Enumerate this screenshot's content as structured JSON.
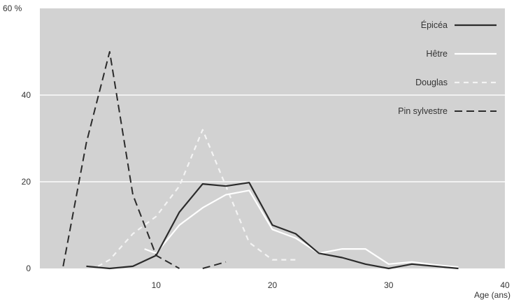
{
  "chart_data": {
    "type": "line",
    "title": "",
    "xlabel": "Age (ans)",
    "ylabel": "",
    "xlim": [
      0,
      40
    ],
    "ylim": [
      0,
      60
    ],
    "x_ticks": [
      {
        "value": 10,
        "label": "10"
      },
      {
        "value": 20,
        "label": "20"
      },
      {
        "value": 30,
        "label": "30"
      },
      {
        "value": 40,
        "label": "40"
      }
    ],
    "y_ticks": [
      {
        "value": 0,
        "label": "0"
      },
      {
        "value": 20,
        "label": "20"
      },
      {
        "value": 40,
        "label": "40"
      },
      {
        "value": 60,
        "label": "60 %"
      }
    ],
    "grid": "horizontal",
    "legend_position": "top-right",
    "colors": {
      "plot_background": "#d2d2d2",
      "grid": "#f2f2f2",
      "epicea": "#2b2b2b",
      "hetre": "#ffffff",
      "douglas": "#f4f4f4",
      "pin": "#2b2b2b"
    },
    "series": [
      {
        "name": "Épicéa",
        "style": "solid-dark",
        "points": [
          [
            4,
            0.5
          ],
          [
            6,
            0
          ],
          [
            8,
            0.5
          ],
          [
            10,
            3
          ],
          [
            12,
            13
          ],
          [
            14,
            19.5
          ],
          [
            16,
            19
          ],
          [
            18,
            19.8
          ],
          [
            20,
            10
          ],
          [
            22,
            8
          ],
          [
            24,
            3.5
          ],
          [
            26,
            2.5
          ],
          [
            28,
            1
          ],
          [
            30,
            0
          ],
          [
            32,
            1
          ],
          [
            34,
            0.5
          ],
          [
            36,
            0
          ]
        ]
      },
      {
        "name": "Hêtre",
        "style": "solid-white",
        "points": [
          [
            9,
            4.5
          ],
          [
            10,
            3.5
          ],
          [
            12,
            10
          ],
          [
            14,
            14
          ],
          [
            16,
            17
          ],
          [
            18,
            18
          ],
          [
            20,
            9
          ],
          [
            22,
            7
          ],
          [
            24,
            3.5
          ],
          [
            26,
            4.5
          ],
          [
            28,
            4.5
          ],
          [
            30,
            1
          ],
          [
            32,
            1.5
          ],
          [
            34,
            0.8
          ],
          [
            36,
            0.3
          ]
        ]
      },
      {
        "name": "Douglas",
        "style": "dashed-white",
        "points": [
          [
            5,
            0.5
          ],
          [
            6,
            2
          ],
          [
            8,
            8
          ],
          [
            10,
            12
          ],
          [
            12,
            19
          ],
          [
            14,
            32
          ],
          [
            16,
            19
          ],
          [
            18,
            6
          ],
          [
            20,
            2
          ],
          [
            22,
            2
          ]
        ]
      },
      {
        "name": "Pin sylvestre",
        "style": "dashed-dark",
        "segments": [
          [
            [
              2,
              0.5
            ],
            [
              4,
              29
            ],
            [
              6,
              50
            ],
            [
              8,
              17
            ],
            [
              10,
              3
            ],
            [
              12,
              0
            ]
          ],
          [
            [
              14,
              0
            ],
            [
              16,
              1.5
            ]
          ]
        ]
      }
    ]
  }
}
